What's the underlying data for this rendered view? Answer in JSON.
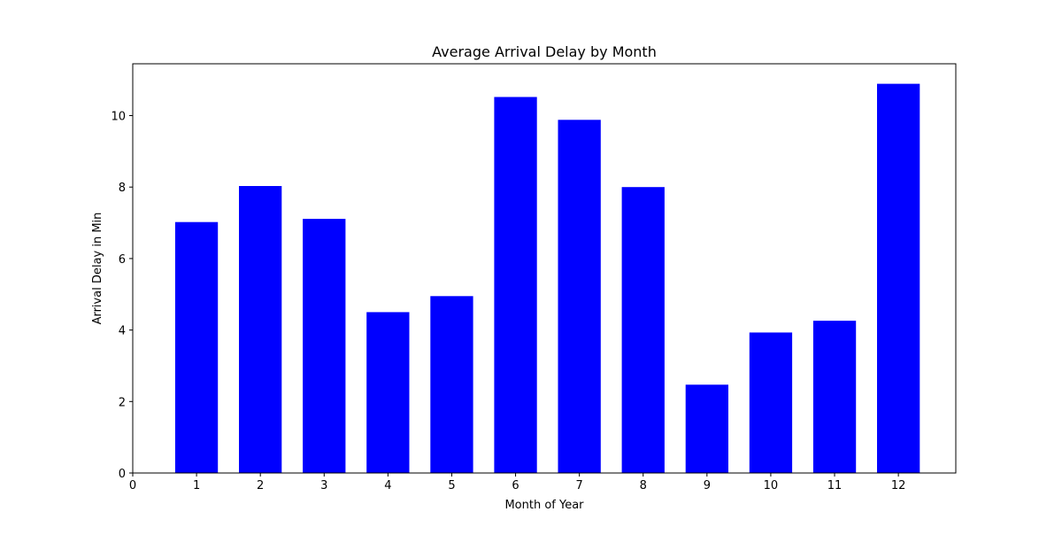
{
  "chart_data": {
    "type": "bar",
    "title": "Average Arrival Delay by Month",
    "xlabel": "Month of Year",
    "ylabel": "Arrival Delay in Min",
    "x_ticks": [
      0,
      1,
      2,
      3,
      4,
      5,
      6,
      7,
      8,
      9,
      10,
      11,
      12
    ],
    "y_ticks": [
      0,
      2,
      4,
      6,
      8,
      10
    ],
    "xlim": [
      0,
      12.9
    ],
    "ylim": [
      0,
      11.45
    ],
    "categories": [
      1,
      2,
      3,
      4,
      5,
      6,
      7,
      8,
      9,
      10,
      11,
      12
    ],
    "values": [
      7.02,
      8.03,
      7.11,
      4.5,
      4.95,
      10.52,
      9.88,
      8.0,
      2.47,
      3.93,
      4.26,
      10.89
    ],
    "bar_color": "#0000ff",
    "grid": false,
    "legend": "none"
  }
}
